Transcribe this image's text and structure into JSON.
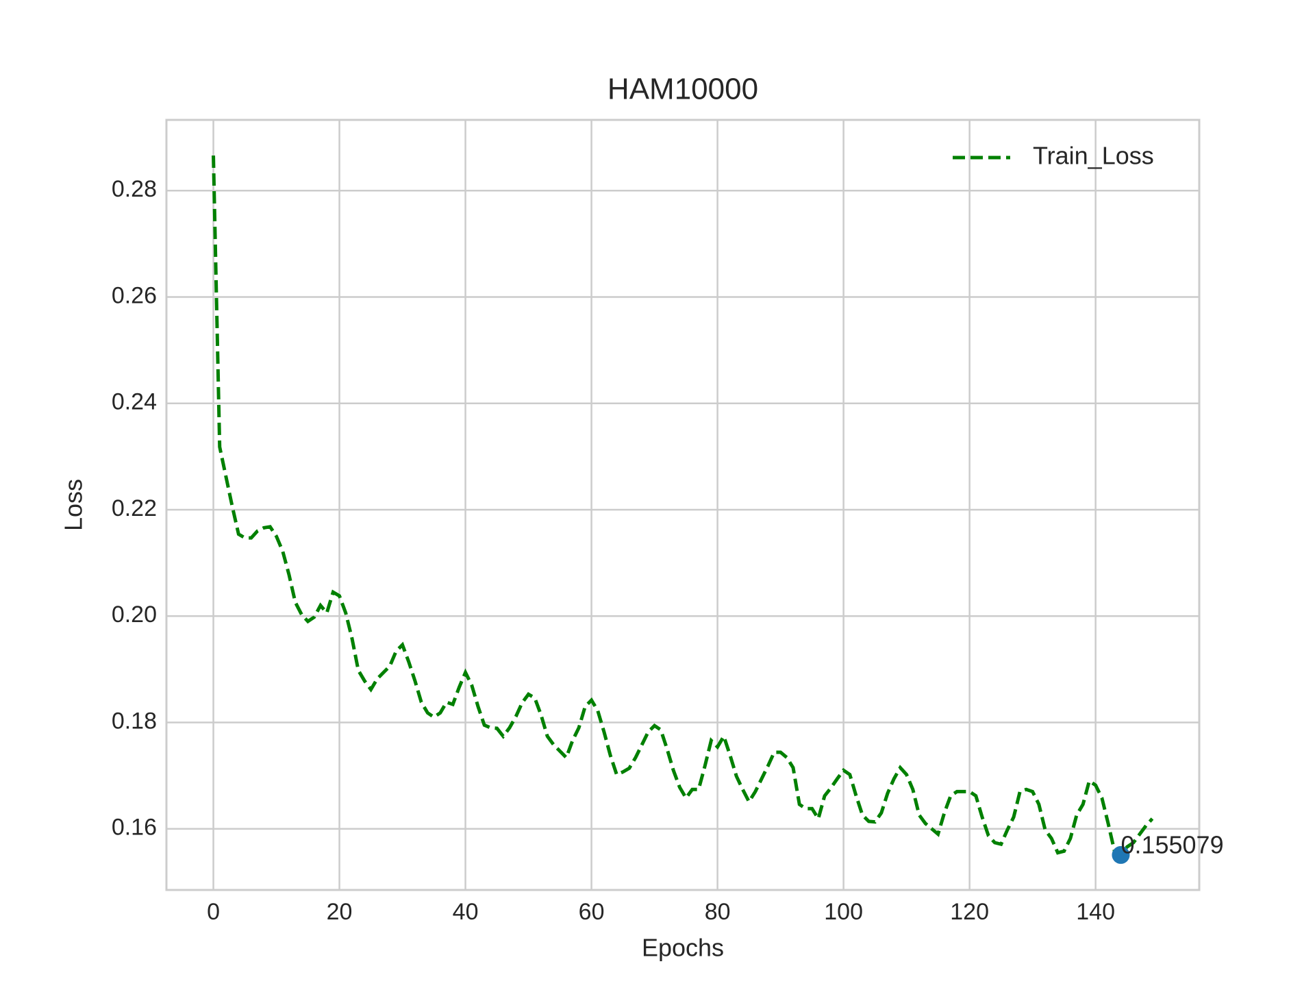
{
  "chart_data": {
    "type": "line",
    "title": "HAM10000",
    "x_label": "Epochs",
    "y_label": "Loss",
    "x": [
      0,
      1,
      2,
      3,
      4,
      5,
      6,
      7,
      8,
      9,
      10,
      11,
      12,
      13,
      14,
      15,
      16,
      17,
      18,
      19,
      20,
      21,
      22,
      23,
      24,
      25,
      26,
      27,
      28,
      29,
      30,
      31,
      32,
      33,
      34,
      35,
      36,
      37,
      38,
      39,
      40,
      41,
      42,
      43,
      44,
      45,
      46,
      47,
      48,
      49,
      50,
      51,
      52,
      53,
      54,
      55,
      56,
      57,
      58,
      59,
      60,
      61,
      62,
      63,
      64,
      65,
      66,
      67,
      68,
      69,
      70,
      71,
      72,
      73,
      74,
      75,
      76,
      77,
      78,
      79,
      80,
      81,
      82,
      83,
      84,
      85,
      86,
      87,
      88,
      89,
      90,
      91,
      92,
      93,
      94,
      95,
      96,
      97,
      98,
      99,
      100,
      101,
      102,
      103,
      104,
      105,
      106,
      107,
      108,
      109,
      110,
      111,
      112,
      113,
      114,
      115,
      116,
      117,
      118,
      119,
      120,
      121,
      122,
      123,
      124,
      125,
      126,
      127,
      128,
      129,
      130,
      131,
      132,
      133,
      134,
      135,
      136,
      137,
      138,
      139,
      140,
      141,
      142,
      143,
      144,
      145,
      146,
      147,
      148,
      149
    ],
    "series": [
      {
        "name": "Train_Loss",
        "color": "#008000",
        "dashed": true,
        "values": [
          0.2866,
          0.2318,
          0.2262,
          0.2206,
          0.2154,
          0.2147,
          0.2147,
          0.216,
          0.2166,
          0.2168,
          0.215,
          0.2122,
          0.2078,
          0.2026,
          0.2003,
          0.199,
          0.1998,
          0.202,
          0.2006,
          0.2045,
          0.2038,
          0.2006,
          0.1958,
          0.1898,
          0.1878,
          0.1862,
          0.1882,
          0.1894,
          0.1906,
          0.1934,
          0.1946,
          0.1914,
          0.1878,
          0.1838,
          0.1818,
          0.181,
          0.1818,
          0.1838,
          0.1834,
          0.1866,
          0.1894,
          0.187,
          0.183,
          0.1795,
          0.179,
          0.1789,
          0.1774,
          0.179,
          0.1811,
          0.1837,
          0.1853,
          0.1846,
          0.1814,
          0.1774,
          0.1758,
          0.1746,
          0.1734,
          0.1766,
          0.179,
          0.183,
          0.1842,
          0.1822,
          0.1782,
          0.1738,
          0.1702,
          0.1707,
          0.1714,
          0.1734,
          0.1758,
          0.1782,
          0.1794,
          0.1786,
          0.175,
          0.171,
          0.1678,
          0.1658,
          0.1674,
          0.1674,
          0.1718,
          0.1766,
          0.1754,
          0.1774,
          0.1738,
          0.1699,
          0.1674,
          0.1651,
          0.167,
          0.1694,
          0.1718,
          0.1744,
          0.1744,
          0.1734,
          0.1715,
          0.1646,
          0.1638,
          0.1638,
          0.1619,
          0.1662,
          0.1677,
          0.1694,
          0.171,
          0.1702,
          0.1662,
          0.1626,
          0.1614,
          0.1613,
          0.163,
          0.1667,
          0.1694,
          0.1715,
          0.1702,
          0.1674,
          0.1626,
          0.161,
          0.16,
          0.159,
          0.163,
          0.1662,
          0.167,
          0.167,
          0.167,
          0.1662,
          0.1622,
          0.1587,
          0.1574,
          0.1571,
          0.1598,
          0.1622,
          0.167,
          0.1674,
          0.167,
          0.1646,
          0.1598,
          0.1582,
          0.1555,
          0.1558,
          0.1582,
          0.1626,
          0.1646,
          0.169,
          0.1682,
          0.1658,
          0.161,
          0.1558,
          0.155079,
          0.1566,
          0.1574,
          0.159,
          0.1606,
          0.1619
        ]
      }
    ],
    "annotation": {
      "x": 144,
      "y": 0.155079,
      "color": "#1f77b4"
    },
    "xlim": [
      -7.45,
      156.45
    ],
    "ylim": [
      0.1485,
      0.2933
    ],
    "xticks": [
      0,
      20,
      40,
      60,
      80,
      100,
      120,
      140
    ],
    "yticks": [
      0.16,
      0.18,
      {
        "value": 0.2,
        "label": "0.20"
      },
      0.22,
      0.24,
      0.26,
      0.28
    ],
    "grid": true,
    "legend": "upper right"
  }
}
